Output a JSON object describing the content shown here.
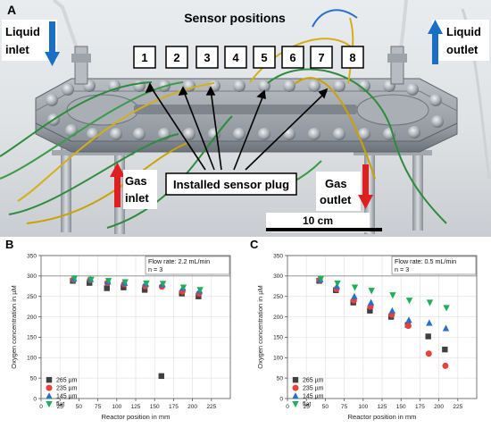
{
  "panel_a": {
    "label": "A",
    "sensor_title": "Sensor positions",
    "liquid_inlet": [
      "Liquid",
      "inlet"
    ],
    "liquid_outlet": [
      "Liquid",
      "outlet"
    ],
    "gas_inlet": [
      "Gas",
      "inlet"
    ],
    "gas_outlet": [
      "Gas",
      "outlet"
    ],
    "plug_label": "Installed sensor plug",
    "scale_label": "10 cm",
    "sensor_numbers": [
      "1",
      "2",
      "3",
      "4",
      "5",
      "6",
      "7",
      "8"
    ],
    "colors": {
      "liquid_arrow": "#1a6fc4",
      "gas_arrow": "#e02020"
    }
  },
  "chart_data": [
    {
      "type": "scatter",
      "panel": "B",
      "xlabel": "Reactor position in mm",
      "ylabel": "Oxygen concentration in µM",
      "xlim": [
        0,
        250
      ],
      "ylim": [
        0,
        350
      ],
      "xticks": [
        0,
        25,
        50,
        75,
        100,
        125,
        150,
        175,
        200,
        225
      ],
      "yticks": [
        0,
        50,
        100,
        150,
        200,
        250,
        300,
        350
      ],
      "annotation": [
        "Flow rate: 2.2 mL/min",
        "n = 3"
      ],
      "reference_line_y": 300,
      "grid": true,
      "legend_position": "bottom-left",
      "series": [
        {
          "name": "265 µm",
          "color": "#404040",
          "marker": "square",
          "x": [
            43,
            65,
            88,
            110,
            138,
            160,
            187,
            209
          ],
          "y": [
            288,
            283,
            270,
            272,
            266,
            55,
            257,
            250
          ]
        },
        {
          "name": "235 µm",
          "color": "#e8403a",
          "marker": "circle",
          "x": [
            43,
            65,
            88,
            110,
            138,
            160,
            187,
            209
          ],
          "y": [
            291,
            290,
            283,
            280,
            275,
            274,
            262,
            257
          ]
        },
        {
          "name": "145 µm",
          "color": "#2a6fd0",
          "marker": "triangle",
          "x": [
            43,
            65,
            88,
            110,
            138,
            160,
            187,
            209
          ],
          "y": [
            293,
            292,
            286,
            283,
            281,
            279,
            271,
            264
          ]
        },
        {
          "name": "flat",
          "color": "#1fae5a",
          "marker": "triangle-down",
          "x": [
            43,
            65,
            88,
            110,
            138,
            160,
            187,
            209
          ],
          "y": [
            294,
            291,
            288,
            285,
            282,
            281,
            272,
            266
          ]
        }
      ]
    },
    {
      "type": "scatter",
      "panel": "C",
      "xlabel": "Reactor position in mm",
      "ylabel": "Oxygen concentration in µM",
      "xlim": [
        0,
        250
      ],
      "ylim": [
        0,
        350
      ],
      "xticks": [
        0,
        25,
        50,
        75,
        100,
        125,
        150,
        175,
        200,
        225
      ],
      "yticks": [
        0,
        50,
        100,
        150,
        200,
        250,
        300,
        350
      ],
      "annotation": [
        "Flow rate: 0.5 mL/min",
        "n = 3"
      ],
      "reference_line_y": 300,
      "grid": true,
      "legend_position": "bottom-left",
      "series": [
        {
          "name": "265 µm",
          "color": "#404040",
          "marker": "square",
          "x": [
            43,
            65,
            88,
            110,
            138,
            160,
            187,
            209
          ],
          "y": [
            288,
            265,
            235,
            215,
            200,
            180,
            152,
            120
          ]
        },
        {
          "name": "235 µm",
          "color": "#e8403a",
          "marker": "circle",
          "x": [
            43,
            65,
            88,
            110,
            138,
            160,
            187,
            209
          ],
          "y": [
            290,
            268,
            240,
            225,
            205,
            178,
            110,
            80
          ]
        },
        {
          "name": "145 µm",
          "color": "#2a6fd0",
          "marker": "triangle",
          "x": [
            43,
            65,
            88,
            110,
            138,
            160,
            187,
            209
          ],
          "y": [
            291,
            275,
            250,
            235,
            215,
            192,
            185,
            172
          ]
        },
        {
          "name": "flat",
          "color": "#1fae5a",
          "marker": "triangle-down",
          "x": [
            43,
            65,
            88,
            110,
            138,
            160,
            187,
            209
          ],
          "y": [
            293,
            282,
            272,
            264,
            253,
            240,
            235,
            222
          ]
        }
      ]
    }
  ]
}
